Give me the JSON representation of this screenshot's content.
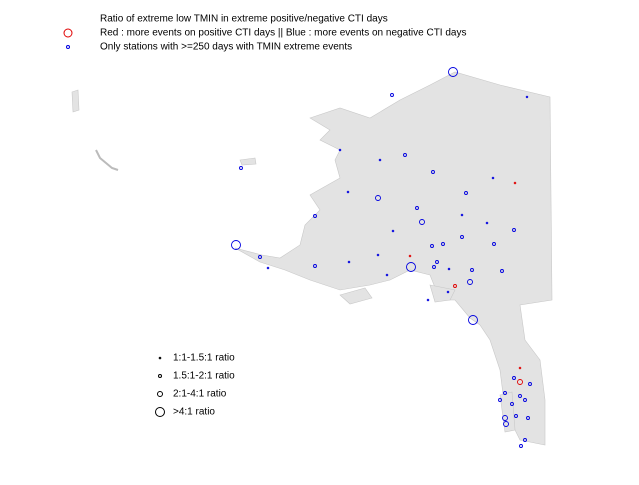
{
  "header": {
    "title": "Ratio of extreme low TMIN in extreme positive/negative CTI days",
    "subtitle": "Red : more events on positive CTI days || Blue : more events on negative CTI days",
    "note": "Only stations with >=250 days with TMIN extreme events"
  },
  "legend": {
    "items": [
      "1:1-1.5:1 ratio",
      "1.5:1-2:1 ratio",
      "2:1-4:1 ratio",
      ">4:1 ratio"
    ]
  }
}
